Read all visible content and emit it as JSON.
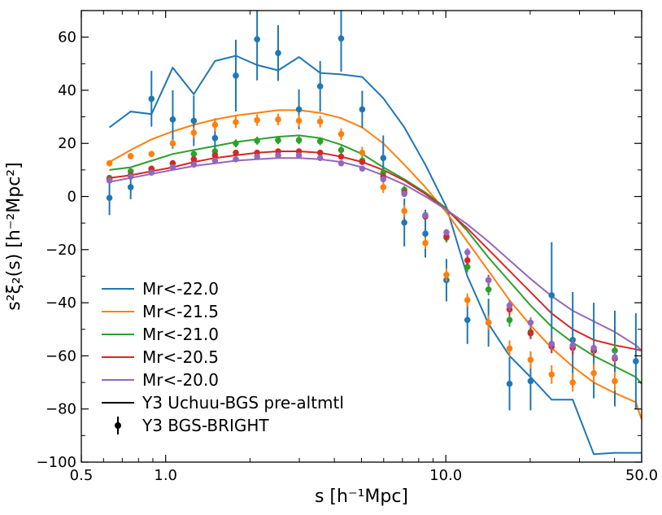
{
  "chart_data": {
    "type": "line",
    "title": "",
    "xscale": "log",
    "xlabel": "s [h⁻¹Mpc]",
    "ylabel": "s²ξ₂(s)  [h⁻²Mpc²]",
    "xlim": [
      0.5,
      50.0
    ],
    "ylim": [
      -100,
      70
    ],
    "x_ticks": [
      0.5,
      1.0,
      10.0,
      50.0
    ],
    "x_tick_labels": [
      "0.5",
      "1.0",
      "10.0",
      "50.0"
    ],
    "y_ticks": [
      -100,
      -80,
      -60,
      -40,
      -20,
      0,
      20,
      40,
      60
    ],
    "y_tick_labels": [
      "−100",
      "−80",
      "−60",
      "−40",
      "−20",
      "0",
      "20",
      "40",
      "60"
    ],
    "legend_position": "lower-left",
    "legend": {
      "model_label": "Y3 Uchuu-BGS pre-altmtl",
      "data_label": "Y3 BGS-BRIGHT"
    },
    "series": [
      {
        "name": "Mr<-22.0",
        "color": "#1f77b4",
        "model_x": [
          0.63,
          0.75,
          0.89,
          1.06,
          1.26,
          1.5,
          1.78,
          2.12,
          2.52,
          2.99,
          3.56,
          4.23,
          5.03,
          5.98,
          7.11,
          8.45,
          10.05,
          11.94,
          14.2,
          16.88,
          20.07,
          23.86,
          28.37,
          33.73,
          40.1,
          47.67,
          50.0
        ],
        "model_y": [
          26,
          32,
          31,
          48.5,
          38.5,
          51,
          53,
          49.5,
          47.5,
          52.5,
          46.5,
          46,
          45,
          37,
          26,
          12,
          -4,
          -30,
          -48,
          -60,
          -68,
          -76.5,
          -76.5,
          -97,
          -96.5,
          -96.5,
          -96.5
        ],
        "data_x": [
          0.63,
          0.75,
          0.89,
          1.06,
          1.26,
          1.5,
          1.78,
          2.12,
          2.52,
          2.99,
          3.56,
          4.23,
          5.03,
          5.98,
          7.11,
          8.45,
          10.05,
          11.94,
          14.2,
          16.88,
          20.07,
          23.86,
          28.37,
          33.73,
          40.1,
          47.67
        ],
        "data_y": [
          -0.5,
          3.5,
          36.8,
          29,
          28.5,
          22,
          45.5,
          59.2,
          54,
          32.8,
          41.5,
          59.5,
          32.8,
          14.5,
          -9.8,
          -14,
          -31.5,
          -46.5,
          -47.5,
          -70.5,
          -69.5,
          -37.2,
          -54,
          -58,
          -61,
          -62
        ],
        "data_err": [
          6.5,
          4.5,
          10.5,
          11,
          9.5,
          7,
          13.5,
          15.5,
          10.5,
          7.5,
          9.5,
          12.5,
          7,
          8.5,
          9,
          9,
          8,
          9,
          9,
          10,
          11,
          20,
          18,
          18,
          18,
          18
        ]
      },
      {
        "name": "Mr<-21.5",
        "color": "#ff7f0e",
        "model_x": [
          0.63,
          0.75,
          0.89,
          1.06,
          1.26,
          1.5,
          1.78,
          2.12,
          2.52,
          2.99,
          3.56,
          4.23,
          5.03,
          5.98,
          7.11,
          8.45,
          10.05,
          11.94,
          14.2,
          16.88,
          20.07,
          23.86,
          28.37,
          33.73,
          40.1,
          47.67,
          50.0
        ],
        "model_y": [
          13,
          17.5,
          21.5,
          24.5,
          27,
          29,
          30.5,
          31.5,
          32.5,
          32.5,
          31.5,
          29.5,
          26,
          20,
          12,
          3.5,
          -6,
          -17,
          -28,
          -39,
          -48.5,
          -57,
          -64,
          -70,
          -74,
          -77.5,
          -84
        ],
        "data_x": [
          0.63,
          0.75,
          0.89,
          1.06,
          1.26,
          1.5,
          1.78,
          2.12,
          2.52,
          2.99,
          3.56,
          4.23,
          5.03,
          5.98,
          7.11,
          8.45,
          10.05,
          11.94,
          14.2,
          16.88,
          20.07,
          23.86,
          28.37,
          33.73,
          40.1
        ],
        "data_y": [
          12.5,
          15.2,
          16,
          20,
          24,
          27,
          28,
          28.8,
          29,
          28.5,
          28.2,
          23.5,
          16.5,
          3.5,
          -5.5,
          -17.5,
          -29.5,
          -39,
          -47.5,
          -57.2,
          -61.5,
          -67,
          -70,
          -66.5,
          -69.5
        ],
        "data_err": [
          1.2,
          1.2,
          1.2,
          1.5,
          2,
          2.5,
          2.2,
          2.2,
          2.2,
          2.2,
          2.2,
          2.2,
          2.2,
          2.2,
          2.2,
          2.2,
          2.5,
          2.5,
          2.8,
          3,
          3.2,
          3.5,
          3.5,
          3.5,
          3.5
        ]
      },
      {
        "name": "Mr<-21.0",
        "color": "#2ca02c",
        "model_x": [
          0.63,
          0.75,
          0.89,
          1.06,
          1.26,
          1.5,
          1.78,
          2.12,
          2.52,
          2.99,
          3.56,
          4.23,
          5.03,
          5.98,
          7.11,
          8.45,
          10.05,
          11.94,
          14.2,
          16.88,
          20.07,
          23.86,
          28.37,
          33.73,
          40.1,
          47.67,
          50.0
        ],
        "model_y": [
          10,
          11,
          13.5,
          16,
          17.5,
          19,
          20.5,
          21.5,
          22.5,
          23,
          22,
          19.5,
          16,
          11,
          6.5,
          1.5,
          -4.5,
          -13,
          -23,
          -32,
          -41,
          -49,
          -55,
          -60,
          -64,
          -68,
          -70.5
        ],
        "data_x": [
          0.63,
          0.75,
          0.89,
          1.06,
          1.26,
          1.5,
          1.78,
          2.12,
          2.52,
          2.99,
          3.56,
          4.23,
          5.03,
          5.98,
          7.11,
          8.45,
          10.05,
          11.94,
          14.2,
          16.88,
          20.07,
          23.86,
          28.37,
          33.73,
          40.1
        ],
        "data_y": [
          7,
          9.5,
          10.2,
          12.5,
          16,
          17,
          20,
          21,
          21.2,
          21.2,
          20.8,
          17.5,
          13.5,
          9,
          2.5,
          -7,
          -15.5,
          -26.5,
          -35,
          -46.5,
          -51,
          -55.5,
          -56.5,
          -58,
          -58
        ],
        "data_err": [
          1,
          1,
          1,
          1.2,
          1.2,
          1.5,
          1.5,
          1.5,
          1.5,
          1.5,
          1.5,
          1.5,
          1.5,
          1.5,
          1.5,
          1.5,
          1.8,
          2,
          2.2,
          2.5,
          2.5,
          2.8,
          2.8,
          2.8,
          2.8
        ]
      },
      {
        "name": "Mr<-20.5",
        "color": "#d62728",
        "model_x": [
          0.63,
          0.75,
          0.89,
          1.06,
          1.26,
          1.5,
          1.78,
          2.12,
          2.52,
          2.99,
          3.56,
          4.23,
          5.03,
          5.98,
          7.11,
          8.45,
          10.05,
          11.94,
          14.2,
          16.88,
          20.07,
          23.86,
          28.37,
          33.73,
          40.1,
          47.67,
          50.0
        ],
        "model_y": [
          7,
          8,
          9.5,
          11,
          13,
          14.5,
          15.5,
          16.5,
          17,
          17,
          16.5,
          15,
          13,
          10,
          6,
          1,
          -5,
          -12,
          -20,
          -28,
          -36,
          -44,
          -50,
          -54,
          -56,
          -57.5,
          -58
        ],
        "data_x": [
          0.63,
          0.75,
          0.89,
          1.06,
          1.26,
          1.5,
          1.78,
          2.12,
          2.52,
          2.99,
          3.56,
          4.23,
          5.03,
          5.98,
          7.11,
          8.45,
          10.05,
          11.94,
          14.2,
          16.88,
          20.07,
          23.86,
          28.37,
          33.73,
          40.1
        ],
        "data_y": [
          6.5,
          8,
          10.5,
          12.5,
          14,
          15.5,
          16.5,
          16.5,
          17,
          17,
          16.5,
          15,
          13,
          7.5,
          1.5,
          -7.5,
          -15,
          -24,
          -31.5,
          -42.5,
          -51.5,
          -56.5,
          -57,
          -58,
          -61
        ],
        "data_err": [
          0.8,
          0.8,
          0.8,
          0.8,
          1,
          1,
          1,
          1,
          1,
          1,
          1,
          1,
          1,
          1,
          1,
          1.2,
          1.5,
          1.8,
          2,
          2.2,
          2.2,
          2.5,
          2.5,
          2.5,
          2.5
        ]
      },
      {
        "name": "Mr<-20.0",
        "color": "#9467bd",
        "model_x": [
          0.63,
          0.75,
          0.89,
          1.06,
          1.26,
          1.5,
          1.78,
          2.12,
          2.52,
          2.99,
          3.56,
          4.23,
          5.03,
          5.98,
          7.11,
          8.45,
          10.05,
          11.94,
          14.2,
          16.88,
          20.07,
          23.86,
          28.37,
          33.73,
          40.1,
          47.67,
          50.0
        ],
        "model_y": [
          5.5,
          7,
          8.5,
          10,
          11.5,
          12.5,
          13.5,
          14,
          14.5,
          14.5,
          14,
          13,
          11,
          8,
          4.5,
          0,
          -5,
          -10.5,
          -17,
          -24,
          -31,
          -37.5,
          -43,
          -47,
          -51,
          -56,
          -58
        ],
        "data_x": [
          0.63,
          0.75,
          0.89,
          1.06,
          1.26,
          1.5,
          1.78,
          2.12,
          2.52,
          2.99,
          3.56,
          4.23,
          5.03,
          5.98,
          7.11,
          8.45,
          10.05,
          11.94,
          14.2,
          16.88,
          20.07,
          23.86,
          28.37,
          33.73,
          40.1
        ],
        "data_y": [
          6,
          7.5,
          9,
          11,
          12,
          13.5,
          14,
          15,
          15.5,
          15.5,
          14.5,
          12.5,
          10.5,
          6.5,
          1,
          -7,
          -13.5,
          -21,
          -31.5,
          -41,
          -47.5,
          -55.5,
          -56,
          -57,
          -60.5
        ],
        "data_err": [
          0.7,
          0.7,
          0.7,
          0.7,
          0.8,
          0.8,
          0.8,
          0.8,
          0.8,
          0.8,
          0.8,
          0.8,
          0.8,
          0.8,
          0.8,
          1,
          1.2,
          1.5,
          1.8,
          2,
          2,
          2.2,
          2.2,
          2.2,
          2.2
        ]
      }
    ]
  }
}
